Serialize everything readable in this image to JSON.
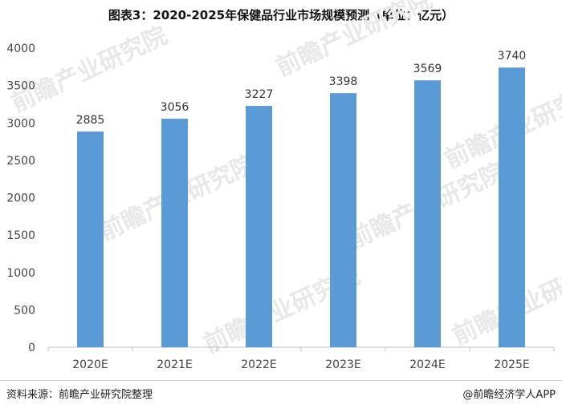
{
  "chart_data": {
    "type": "bar",
    "title": "图表3：2020-2025年保健品行业市场规模预测（单位：亿元）",
    "categories": [
      "2020E",
      "2021E",
      "2022E",
      "2023E",
      "2024E",
      "2025E"
    ],
    "values": [
      2885,
      3056,
      3227,
      3398,
      3569,
      3740
    ],
    "ylim": [
      0,
      4000
    ],
    "yticks": [
      0,
      500,
      1000,
      1500,
      2000,
      2500,
      3000,
      3500,
      4000
    ],
    "xlabel": "",
    "ylabel": "",
    "bar_color": "#5b9bd5",
    "data_labels": true,
    "grid": false,
    "legend": "none"
  },
  "footer": {
    "source": "资料来源：前瞻产业研究院整理",
    "credit": "@前瞻经济学人APP"
  },
  "watermark": "前瞻产业研究院"
}
